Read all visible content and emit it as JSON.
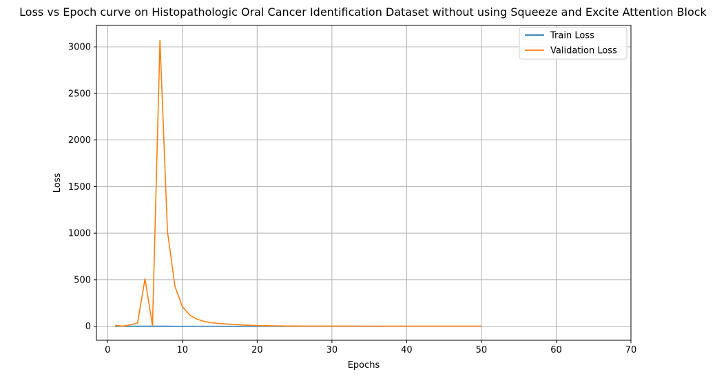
{
  "chart_data": {
    "type": "line",
    "title": "Loss vs Epoch curve on Histopathologic Oral Cancer Identification Dataset without using Squeeze and Excite Attention Block",
    "xlabel": "Epochs",
    "ylabel": "Loss",
    "xlim": [
      -1.5,
      70
    ],
    "ylim": [
      -150,
      3230
    ],
    "xticks": [
      0,
      10,
      20,
      30,
      40,
      50,
      60,
      70
    ],
    "yticks": [
      0,
      500,
      1000,
      1500,
      2000,
      2500,
      3000
    ],
    "grid": true,
    "legend_position": "top-right",
    "series": [
      {
        "name": "Train Loss",
        "color": "#1f77b4",
        "x": [
          1,
          2,
          3,
          4,
          5,
          6,
          7,
          8,
          9,
          10,
          11,
          12,
          13,
          14,
          15,
          16,
          17,
          18,
          19,
          20,
          21,
          22,
          23,
          24,
          25,
          26,
          27,
          28,
          29,
          30,
          31,
          32,
          33,
          34,
          35,
          36,
          37,
          38,
          39,
          40,
          41,
          42,
          43,
          44,
          45,
          46,
          47,
          48,
          49,
          50
        ],
        "y": [
          0.7,
          0.6,
          0.55,
          0.5,
          0.48,
          0.46,
          0.45,
          0.44,
          0.43,
          0.42,
          0.41,
          0.4,
          0.39,
          0.38,
          0.37,
          0.36,
          0.35,
          0.34,
          0.33,
          0.32,
          0.31,
          0.3,
          0.29,
          0.28,
          0.27,
          0.26,
          0.25,
          0.24,
          0.23,
          0.22,
          0.21,
          0.2,
          0.2,
          0.19,
          0.19,
          0.18,
          0.18,
          0.17,
          0.17,
          0.16,
          0.16,
          0.15,
          0.15,
          0.14,
          0.14,
          0.13,
          0.13,
          0.12,
          0.12,
          0.11
        ]
      },
      {
        "name": "Validation Loss",
        "color": "#ff7f0e",
        "x": [
          1,
          2,
          3,
          4,
          5,
          6,
          7,
          8,
          9,
          10,
          11,
          12,
          13,
          14,
          15,
          16,
          17,
          18,
          19,
          20,
          21,
          22,
          23,
          24,
          25,
          26,
          27,
          28,
          29,
          30,
          31,
          32,
          33,
          34,
          35,
          36,
          37,
          38,
          39,
          40,
          41,
          42,
          43,
          44,
          45,
          46,
          47,
          48,
          49,
          50
        ],
        "y": [
          10,
          2,
          15,
          35,
          510,
          5,
          3070,
          1020,
          430,
          210,
          120,
          75,
          50,
          38,
          30,
          24,
          19,
          15,
          11,
          8,
          6,
          5,
          4,
          3,
          3,
          2,
          2,
          2,
          2,
          2,
          1.5,
          1.5,
          1.5,
          1.2,
          1.2,
          1.2,
          1,
          1,
          1,
          1,
          1,
          1,
          1,
          1,
          1,
          1,
          1,
          1,
          1,
          1
        ]
      }
    ]
  }
}
